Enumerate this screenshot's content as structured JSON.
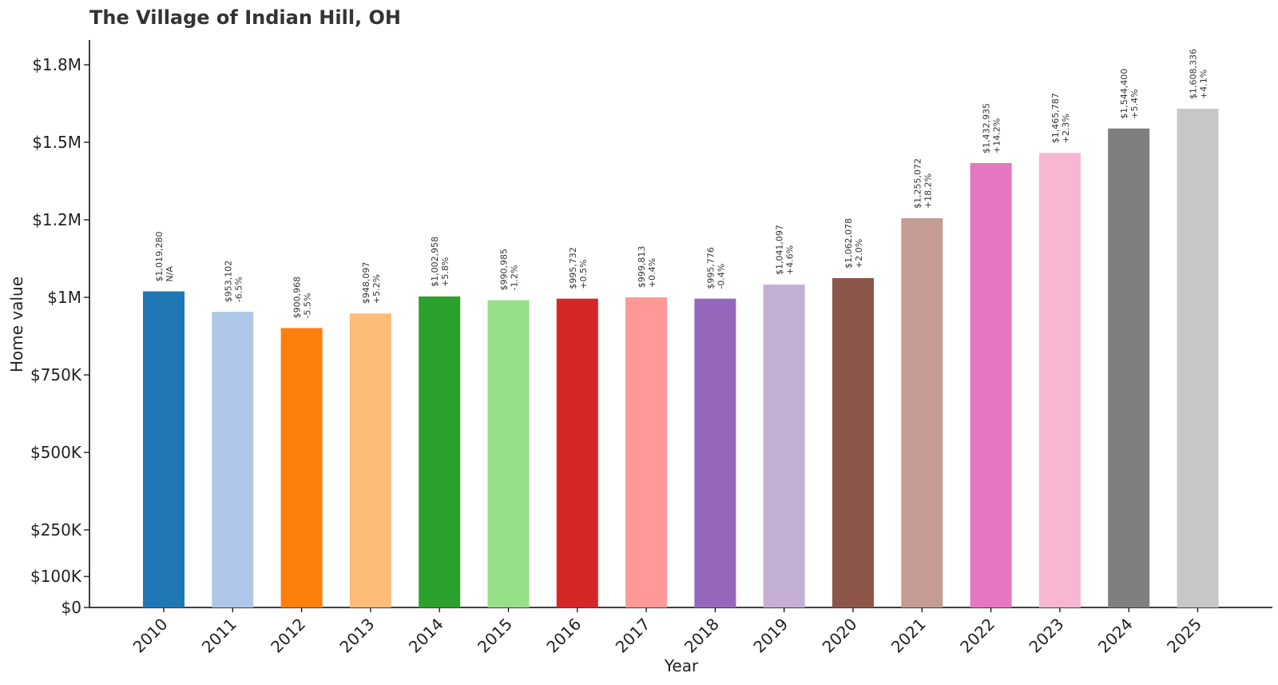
{
  "chart_data": {
    "type": "bar",
    "title": "The Village of Indian Hill, OH",
    "xlabel": "Year",
    "ylabel": "Home value",
    "categories": [
      "2010",
      "2011",
      "2012",
      "2013",
      "2014",
      "2015",
      "2016",
      "2017",
      "2018",
      "2019",
      "2020",
      "2021",
      "2022",
      "2023",
      "2024",
      "2025"
    ],
    "values": [
      1019280,
      953102,
      900968,
      948097,
      1002958,
      990985,
      995732,
      999813,
      995776,
      1041097,
      1062078,
      1255072,
      1432935,
      1465787,
      1544400,
      1608336
    ],
    "value_labels": [
      "$1,019,280",
      "$953,102",
      "$900,968",
      "$948,097",
      "$1,002,958",
      "$990,985",
      "$995,732",
      "$999,813",
      "$995,776",
      "$1,041,097",
      "$1,062,078",
      "$1,255,072",
      "$1,432,935",
      "$1,465,787",
      "$1,544,400",
      "$1,608,336"
    ],
    "change_labels": [
      "N/A",
      "-6.5%",
      "-5.5%",
      "+5.2%",
      "+5.8%",
      "-1.2%",
      "+0.5%",
      "+0.4%",
      "-0.4%",
      "+4.6%",
      "+2.0%",
      "+18.2%",
      "+14.2%",
      "+2.3%",
      "+5.4%",
      "+4.1%"
    ],
    "colors": [
      "#1f77b4",
      "#aec7e8",
      "#ff7f0e",
      "#ffbb78",
      "#2ca02c",
      "#98df8a",
      "#d62728",
      "#ff9896",
      "#9467bd",
      "#c5b0d5",
      "#8c564b",
      "#c49c94",
      "#e377c2",
      "#f7b6d2",
      "#7f7f7f",
      "#c7c7c7"
    ],
    "yticks": [
      0,
      100000,
      250000,
      500000,
      750000,
      1000000,
      1250000,
      1500000,
      1750000
    ],
    "ytick_labels": [
      "$0",
      "$100K",
      "$250K",
      "$500K",
      "$750K",
      "$1M",
      "$1.2M",
      "$1.5M",
      "$1.8M"
    ],
    "ylim": [
      0,
      1850000
    ],
    "grid": false,
    "legend": "none"
  }
}
